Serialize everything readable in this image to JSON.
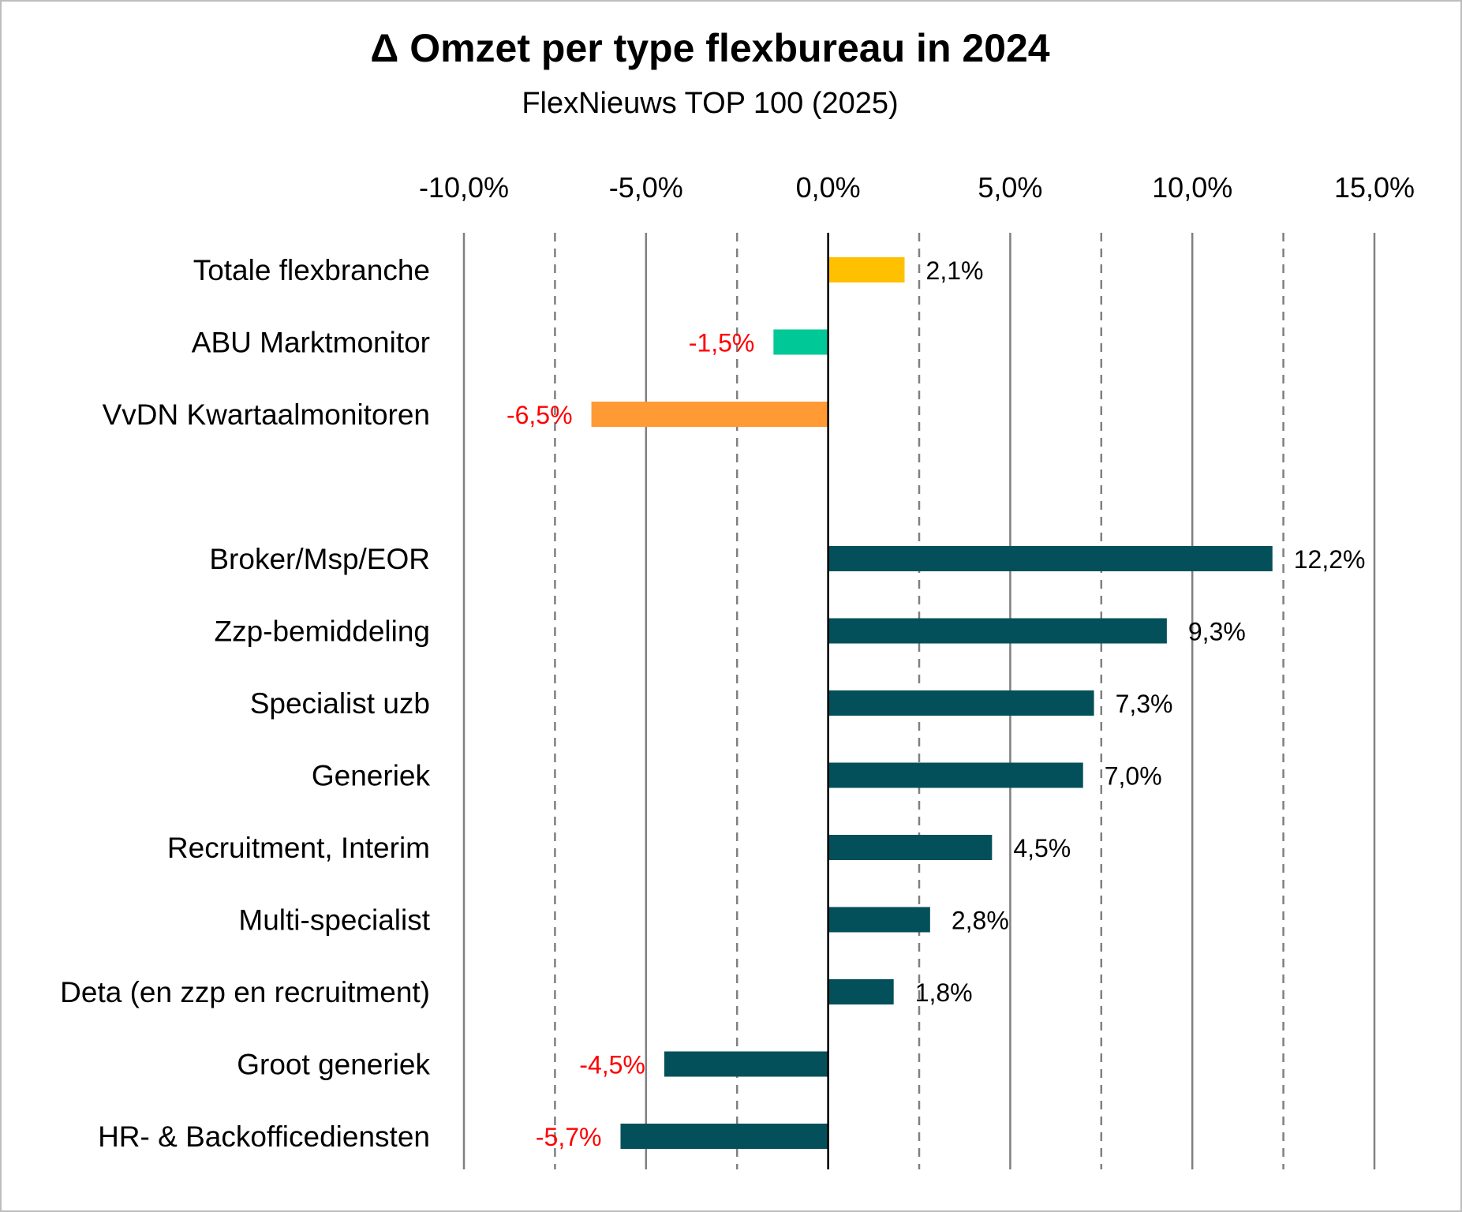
{
  "chart_data": {
    "type": "bar",
    "orientation": "horizontal",
    "title": "Δ Omzet per type flexbureau in 2024",
    "subtitle": "FlexNieuws TOP 100 (2025)",
    "xlim": [
      -10,
      15
    ],
    "x_ticks": [
      {
        "value": -10,
        "label": "-10,0%"
      },
      {
        "value": -5,
        "label": "-5,0%"
      },
      {
        "value": 0,
        "label": "0,0%"
      },
      {
        "value": 5,
        "label": "5,0%"
      },
      {
        "value": 10,
        "label": "10,0%"
      },
      {
        "value": 15,
        "label": "15,0%"
      }
    ],
    "grid": true,
    "categories": [
      {
        "label": "Totale flexbranche",
        "value": 2.1,
        "data_label": "2,1%",
        "color": "#FFC000"
      },
      {
        "label": "ABU Marktmonitor",
        "value": -1.5,
        "data_label": "-1,5%",
        "color": "#00C896"
      },
      {
        "label": "VvDN Kwartaalmonitoren",
        "value": -6.5,
        "data_label": "-6,5%",
        "color": "#FF9A35"
      },
      {
        "label": "Broker/Msp/EOR",
        "value": 12.2,
        "data_label": "12,2%",
        "color": "#04505A"
      },
      {
        "label": "Zzp-bemiddeling",
        "value": 9.3,
        "data_label": "9,3%",
        "color": "#04505A"
      },
      {
        "label": "Specialist uzb",
        "value": 7.3,
        "data_label": "7,3%",
        "color": "#04505A"
      },
      {
        "label": "Generiek",
        "value": 7.0,
        "data_label": "7,0%",
        "color": "#04505A"
      },
      {
        "label": "Recruitment, Interim",
        "value": 4.5,
        "data_label": "4,5%",
        "color": "#04505A"
      },
      {
        "label": "Multi-specialist",
        "value": 2.8,
        "data_label": "2,8%",
        "color": "#04505A"
      },
      {
        "label": "Deta (en zzp en recruitment)",
        "value": 1.8,
        "data_label": "1,8%",
        "color": "#04505A"
      },
      {
        "label": "Groot generiek",
        "value": -4.5,
        "data_label": "-4,5%",
        "color": "#04505A"
      },
      {
        "label": "HR- & Backofficediensten",
        "value": -5.7,
        "data_label": "-5,7%",
        "color": "#04505A"
      }
    ],
    "negative_label_color": "#FF0000",
    "positive_label_color": "#000000"
  }
}
